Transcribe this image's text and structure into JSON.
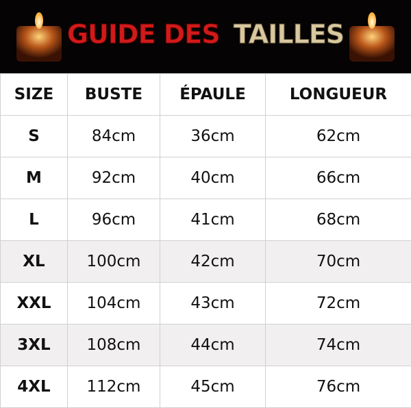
{
  "header": {
    "title_parts": [
      "GUIDE DES",
      "TAILLES"
    ]
  },
  "table": {
    "columns": [
      "SIZE",
      "BUSTE",
      "ÉPAULE",
      "LONGUEUR"
    ],
    "rows": [
      [
        "S",
        "84cm",
        "36cm",
        "62cm"
      ],
      [
        "M",
        "92cm",
        "40cm",
        "66cm"
      ],
      [
        "L",
        "96cm",
        "41cm",
        "68cm"
      ],
      [
        "XL",
        "100cm",
        "42cm",
        "70cm"
      ],
      [
        "XXL",
        "104cm",
        "43cm",
        "72cm"
      ],
      [
        "3XL",
        "108cm",
        "44cm",
        "74cm"
      ],
      [
        "4XL",
        "112cm",
        "45cm",
        "76cm"
      ]
    ]
  }
}
